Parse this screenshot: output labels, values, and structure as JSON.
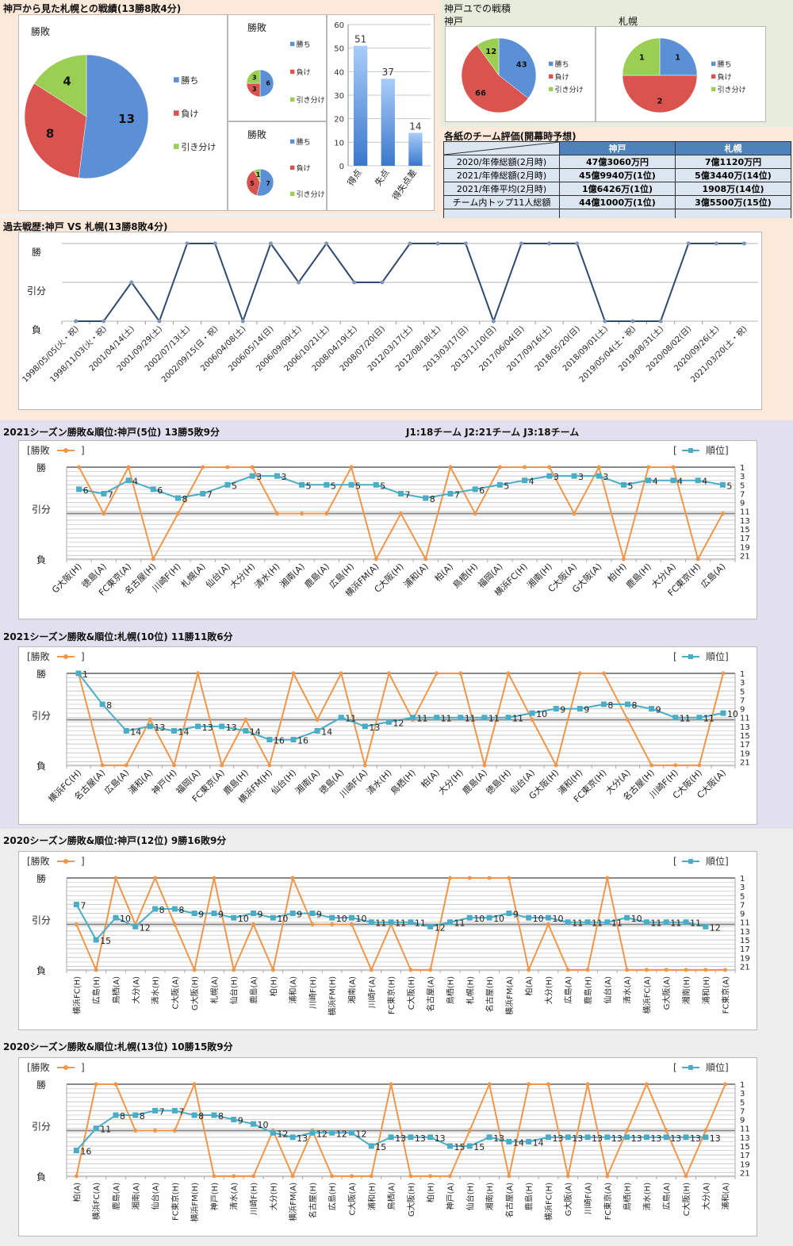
{
  "colors": {
    "win": "#5b8fd6",
    "lose": "#d9534f",
    "draw": "#9bcf54",
    "bar": "#6fa3e0",
    "history_line": "#2f4a6e",
    "result_line": "#f0964a",
    "rank_line": "#4bacc6"
  },
  "section1": {
    "title": "神戸から見た札幌との戦績(13勝8敗4分)"
  },
  "section2": {
    "title": "神戸ユでの戦積",
    "kobe_label": "神戸",
    "sapporo_label": "札幌"
  },
  "evaluation_table": {
    "title": "各紙のチーム評価(開幕時予想)",
    "headers": [
      "",
      "神戸",
      "札幌"
    ],
    "rows": [
      {
        "label": "2020/年俸総額(2月時)",
        "kobe": "47億3060万円",
        "sapporo": "7億1120万円"
      },
      {
        "label": "2021/年俸総額(2月時)",
        "kobe": "45億9940万(1位)",
        "sapporo": "5億3440万(14位)"
      },
      {
        "label": "2021/年俸平均(2月時)",
        "kobe": "1億6426万(1位)",
        "sapporo": "1908万(14位)"
      },
      {
        "label": "チーム内トップ11人総額",
        "kobe": "44億1000万(1位)",
        "sapporo": "3億5500万(15位)"
      },
      {
        "label": "",
        "kobe": "",
        "sapporo": ""
      }
    ]
  },
  "history_section": {
    "title": "過去戦歴:神戸 VS 札幌(13勝8敗4分)"
  },
  "season_sections": [
    {
      "title": "2021シーズン勝敗&順位:神戸(5位) 13勝5敗9分",
      "note": "J1:18チーム  J2:21チーム  J3:18チーム"
    },
    {
      "title": "2021シーズン勝敗&順位:札幌(10位) 11勝11敗6分",
      "note": ""
    },
    {
      "title": "2020シーズン勝敗&順位:神戸(12位) 9勝16敗9分",
      "note": ""
    },
    {
      "title": "2020シーズン勝敗&順位:札幌(13位) 10勝15敗9分",
      "note": ""
    }
  ],
  "legend": {
    "result": "[勝敗",
    "result_close": "]",
    "rank_open": "[",
    "rank": "順位]"
  },
  "chart_data": [
    {
      "id": "overall_pie",
      "type": "pie",
      "title": "勝敗",
      "labels": [
        "勝ち",
        "負け",
        "引き分け"
      ],
      "values": [
        13,
        8,
        4
      ]
    },
    {
      "id": "small_pie_1",
      "type": "pie",
      "title": "勝敗",
      "labels": [
        "勝ち",
        "負け",
        "引き分け"
      ],
      "values": [
        6,
        3,
        3
      ]
    },
    {
      "id": "small_pie_2",
      "type": "pie",
      "title": "勝敗",
      "labels": [
        "勝ち",
        "負け",
        "引き分け"
      ],
      "values": [
        7,
        5,
        1
      ]
    },
    {
      "id": "goals_bar",
      "type": "bar",
      "categories": [
        "得点",
        "失点",
        "得失点差"
      ],
      "values": [
        51,
        37,
        14
      ],
      "ylim": [
        0,
        60
      ],
      "yticks": [
        0,
        10,
        20,
        30,
        40,
        50,
        60
      ]
    },
    {
      "id": "kobe_home_pie",
      "type": "pie",
      "title": "神戸",
      "labels": [
        "勝ち",
        "負け",
        "引き分け"
      ],
      "values": [
        43,
        66,
        12
      ]
    },
    {
      "id": "sapporo_home_pie",
      "type": "pie",
      "title": "札幌",
      "labels": [
        "勝ち",
        "負け",
        "引き分け"
      ],
      "values": [
        1,
        2,
        1
      ]
    },
    {
      "id": "history_line",
      "type": "line",
      "title": "過去戦歴:神戸 VS 札幌(13勝8敗4分)",
      "ylabels": [
        "勝",
        "引分",
        "負"
      ],
      "categories": [
        "1998/05/05(火・祝)",
        "1998/11/03(火・祝)",
        "2001/04/14(土)",
        "2001/09/29(土)",
        "2002/07/13(土)",
        "2002/09/15(日・祝)",
        "2006/04/08(土)",
        "2006/05/14(日)",
        "2006/09/09(土)",
        "2006/10/21(土)",
        "2008/04/19(土)",
        "2008/07/20(日)",
        "2012/03/17(土)",
        "2012/08/18(土)",
        "2013/03/17(日)",
        "2013/11/10(日)",
        "2017/06/04(日)",
        "2017/09/16(土)",
        "2018/05/20(日)",
        "2018/09/01(土)",
        "2019/05/04(土・祝)",
        "2019/08/31(土)",
        "2020/08/02(日)",
        "2020/09/26(土)",
        "2021/03/20(土・祝)"
      ],
      "results": [
        "L",
        "L",
        "D",
        "L",
        "W",
        "W",
        "L",
        "W",
        "D",
        "W",
        "D",
        "D",
        "W",
        "W",
        "W",
        "L",
        "W",
        "W",
        "W",
        "L",
        "L",
        "L",
        "W",
        "W",
        "W"
      ]
    },
    {
      "id": "kobe_2021",
      "type": "line",
      "title": "2021シーズン勝敗&順位:神戸(5位) 13勝5敗9分",
      "ylabels": [
        "勝",
        "引分",
        "負"
      ],
      "rank_ticks": [
        1,
        3,
        5,
        7,
        9,
        11,
        13,
        15,
        17,
        19,
        21
      ],
      "series": [
        {
          "name": "勝敗",
          "values": [
            "W",
            "D",
            "W",
            "L",
            "D",
            "W",
            "W",
            "W",
            "D",
            "D",
            "D",
            "W",
            "L",
            "D",
            "L",
            "W",
            "D",
            "W",
            "W",
            "W",
            "D",
            "W",
            "L",
            "W",
            "W",
            "L",
            "D"
          ]
        },
        {
          "name": "順位",
          "values": [
            6,
            7,
            4,
            6,
            8,
            7,
            5,
            3,
            3,
            5,
            5,
            5,
            5,
            7,
            8,
            7,
            6,
            5,
            4,
            3,
            3,
            3,
            5,
            4,
            4,
            4,
            5
          ]
        }
      ],
      "categories": [
        "G大阪(H)",
        "徳島(A)",
        "FC東京(A)",
        "名古屋(H)",
        "川崎F(H)",
        "札幌(A)",
        "仙台(A)",
        "大分(H)",
        "清水(H)",
        "湘南(A)",
        "鹿島(A)",
        "広島(H)",
        "横浜FM(A)",
        "C大阪(H)",
        "浦和(A)",
        "柏(A)",
        "鳥栖(H)",
        "福岡(A)",
        "横浜FC(H)",
        "湘南(H)",
        "C大阪(A)",
        "G大阪(A)",
        "柏(H)",
        "鹿島(H)",
        "大分(A)",
        "FC東京(H)",
        "広島(A)"
      ]
    },
    {
      "id": "sapporo_2021",
      "type": "line",
      "title": "2021シーズン勝敗&順位:札幌(10位) 11勝11敗6分",
      "ylabels": [
        "勝",
        "引分",
        "負"
      ],
      "rank_ticks": [
        1,
        3,
        5,
        7,
        9,
        11,
        13,
        15,
        17,
        19,
        21
      ],
      "series": [
        {
          "name": "勝敗",
          "values": [
            "W",
            "L",
            "L",
            "D",
            "L",
            "W",
            "L",
            "D",
            "L",
            "W",
            "D",
            "W",
            "L",
            "W",
            "D",
            "W",
            "W",
            "L",
            "W",
            "D",
            "L",
            "W",
            "W",
            "D",
            "L",
            "L",
            "L",
            "W"
          ]
        },
        {
          "name": "順位",
          "values": [
            1,
            8,
            14,
            13,
            14,
            13,
            13,
            14,
            16,
            16,
            14,
            11,
            13,
            12,
            11,
            11,
            11,
            11,
            11,
            10,
            9,
            9,
            8,
            8,
            9,
            11,
            11,
            10
          ]
        }
      ],
      "categories": [
        "横浜FC(H)",
        "名古屋(A)",
        "広島(A)",
        "浦和(A)",
        "神戸(H)",
        "福岡(A)",
        "FC東京(A)",
        "鹿島(H)",
        "横浜FM(H)",
        "仙台(H)",
        "湘南(A)",
        "徳島(A)",
        "川崎F(A)",
        "清水(H)",
        "鳥栖(H)",
        "柏(A)",
        "大分(H)",
        "鹿島(A)",
        "徳島(H)",
        "仙台(A)",
        "G大阪(H)",
        "浦和(H)",
        "FC東京(H)",
        "大分(A)",
        "名古屋(H)",
        "川崎F(H)",
        "C大阪(H)",
        "C大阪(A)"
      ]
    },
    {
      "id": "kobe_2020",
      "type": "line",
      "title": "2020シーズン勝敗&順位:神戸(12位) 9勝16敗9分",
      "ylabels": [
        "勝",
        "引分",
        "負"
      ],
      "rank_ticks": [
        1,
        3,
        5,
        7,
        9,
        11,
        13,
        15,
        17,
        19,
        21
      ],
      "series": [
        {
          "name": "勝敗",
          "values": [
            "D",
            "L",
            "W",
            "D",
            "W",
            "D",
            "L",
            "W",
            "L",
            "D",
            "L",
            "W",
            "D",
            "D",
            "D",
            "L",
            "D",
            "L",
            "L",
            "W",
            "W",
            "W",
            "W",
            "L",
            "D",
            "L",
            "L",
            "W",
            "L",
            "L",
            "L",
            "L",
            "L",
            "L"
          ]
        },
        {
          "name": "順位",
          "values": [
            7,
            15,
            10,
            12,
            8,
            8,
            9,
            9,
            10,
            9,
            10,
            9,
            9,
            10,
            10,
            11,
            11,
            11,
            12,
            11,
            10,
            10,
            9,
            10,
            10,
            11,
            11,
            11,
            10,
            11,
            11,
            11,
            12,
            null
          ]
        }
      ],
      "categories": [
        "横浜FC(H)",
        "広島(H)",
        "鳥栖(A)",
        "大分(A)",
        "清水(H)",
        "C大阪(A)",
        "G大阪(H)",
        "札幌(A)",
        "仙台(H)",
        "鹿島(A)",
        "柏(H)",
        "浦和(A)",
        "川崎F(H)",
        "横浜FM(H)",
        "湘南(A)",
        "川崎F(A)",
        "FC東京(H)",
        "C大阪(H)",
        "名古屋(A)",
        "鳥栖(H)",
        "札幌(H)",
        "名古屋(H)",
        "横浜FM(A)",
        "柏(A)",
        "大分(H)",
        "広島(A)",
        "鹿島(H)",
        "仙台(A)",
        "清水(A)",
        "横浜FC(A)",
        "G大阪(A)",
        "湘南(H)",
        "浦和(H)",
        "FC東京(A)"
      ]
    },
    {
      "id": "sapporo_2020",
      "type": "line",
      "title": "2020シーズン勝敗&順位:札幌(13位) 10勝15敗9分",
      "ylabels": [
        "勝",
        "引分",
        "負"
      ],
      "rank_ticks": [
        1,
        3,
        5,
        7,
        9,
        11,
        13,
        15,
        17,
        19,
        21
      ],
      "series": [
        {
          "name": "勝敗",
          "values": [
            "L",
            "W",
            "W",
            "D",
            "D",
            "D",
            "W",
            "L",
            "L",
            "L",
            "D",
            "L",
            "D",
            "L",
            "L",
            "L",
            "W",
            "L",
            "L",
            "L",
            "D",
            "W",
            "L",
            "W",
            "W",
            "L",
            "W",
            "L",
            "D",
            "W",
            "D",
            "L",
            "D",
            "W"
          ]
        },
        {
          "name": "順位",
          "values": [
            16,
            11,
            8,
            8,
            7,
            7,
            8,
            8,
            9,
            10,
            12,
            13,
            12,
            12,
            12,
            15,
            13,
            13,
            13,
            15,
            15,
            13,
            14,
            14,
            13,
            13,
            13,
            13,
            13,
            13,
            13,
            13,
            13,
            null
          ]
        }
      ],
      "categories": [
        "柏(A)",
        "横浜FC(A)",
        "鹿島(A)",
        "湘南(A)",
        "仙台(A)",
        "FC東京(H)",
        "横浜FM(H)",
        "神戸(H)",
        "清水(A)",
        "川崎F(H)",
        "大分(H)",
        "横浜FM(A)",
        "名古屋(H)",
        "広島(H)",
        "C大阪(A)",
        "浦和(H)",
        "鳥栖(A)",
        "G大阪(H)",
        "柏(H)",
        "神戸(A)",
        "仙台(H)",
        "湘南(H)",
        "名古屋(A)",
        "鹿島(H)",
        "横浜FC(H)",
        "G大阪(A)",
        "川崎F(A)",
        "FC東京(A)",
        "鳥栖(H)",
        "清水(H)",
        "広島(A)",
        "C大阪(H)",
        "大分(A)",
        "浦和(A)"
      ]
    }
  ]
}
